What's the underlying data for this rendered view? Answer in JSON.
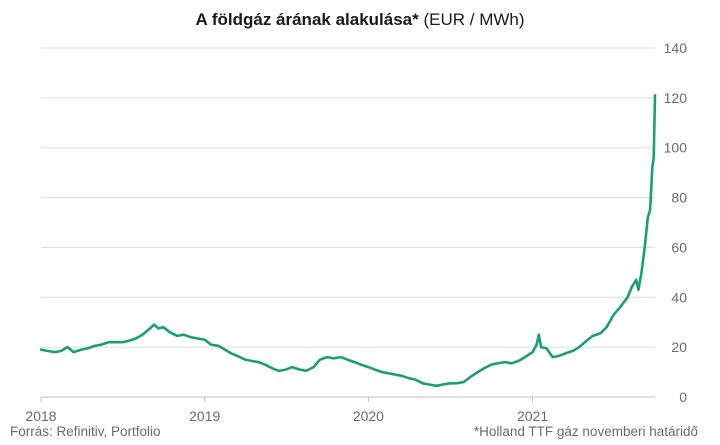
{
  "chart_data": {
    "type": "line",
    "title_bold": "A földgáz árának alakulása*",
    "title_unit": "(EUR / MWh)",
    "ylim": [
      0,
      140
    ],
    "yticks": [
      0,
      20,
      40,
      60,
      80,
      100,
      120,
      140
    ],
    "xlim": [
      "2018-01-01",
      "2021-10-01"
    ],
    "xticks": [
      {
        "label": "2018",
        "date": "2018-01-01"
      },
      {
        "label": "2019",
        "date": "2019-01-01"
      },
      {
        "label": "2020",
        "date": "2020-01-01"
      },
      {
        "label": "2021",
        "date": "2021-01-01"
      }
    ],
    "grid": true,
    "line_color": "#1a9e76",
    "series": [
      {
        "points": [
          [
            "2018-01-01",
            19.0
          ],
          [
            "2018-01-15",
            18.5
          ],
          [
            "2018-02-01",
            18.0
          ],
          [
            "2018-02-15",
            18.5
          ],
          [
            "2018-03-01",
            20.0
          ],
          [
            "2018-03-15",
            18.0
          ],
          [
            "2018-04-01",
            19.0
          ],
          [
            "2018-04-15",
            19.5
          ],
          [
            "2018-05-01",
            20.5
          ],
          [
            "2018-05-15",
            21.0
          ],
          [
            "2018-06-01",
            22.0
          ],
          [
            "2018-06-15",
            22.0
          ],
          [
            "2018-07-01",
            22.0
          ],
          [
            "2018-07-15",
            22.5
          ],
          [
            "2018-08-01",
            23.5
          ],
          [
            "2018-08-15",
            25.0
          ],
          [
            "2018-09-01",
            27.5
          ],
          [
            "2018-09-10",
            29.0
          ],
          [
            "2018-09-20",
            27.5
          ],
          [
            "2018-10-01",
            28.0
          ],
          [
            "2018-10-15",
            26.0
          ],
          [
            "2018-11-01",
            24.5
          ],
          [
            "2018-11-15",
            25.0
          ],
          [
            "2018-12-01",
            24.0
          ],
          [
            "2018-12-15",
            23.5
          ],
          [
            "2019-01-01",
            23.0
          ],
          [
            "2019-01-15",
            21.0
          ],
          [
            "2019-02-01",
            20.5
          ],
          [
            "2019-02-15",
            19.0
          ],
          [
            "2019-03-01",
            17.5
          ],
          [
            "2019-03-15",
            16.5
          ],
          [
            "2019-04-01",
            15.0
          ],
          [
            "2019-04-15",
            14.5
          ],
          [
            "2019-05-01",
            14.0
          ],
          [
            "2019-05-15",
            13.0
          ],
          [
            "2019-06-01",
            11.5
          ],
          [
            "2019-06-15",
            10.5
          ],
          [
            "2019-07-01",
            11.0
          ],
          [
            "2019-07-15",
            12.0
          ],
          [
            "2019-08-01",
            11.0
          ],
          [
            "2019-08-15",
            10.5
          ],
          [
            "2019-09-01",
            12.0
          ],
          [
            "2019-09-15",
            15.0
          ],
          [
            "2019-10-01",
            16.0
          ],
          [
            "2019-10-15",
            15.5
          ],
          [
            "2019-11-01",
            16.0
          ],
          [
            "2019-11-15",
            15.0
          ],
          [
            "2019-12-01",
            14.0
          ],
          [
            "2019-12-15",
            13.0
          ],
          [
            "2020-01-01",
            12.0
          ],
          [
            "2020-01-15",
            11.0
          ],
          [
            "2020-02-01",
            10.0
          ],
          [
            "2020-02-15",
            9.5
          ],
          [
            "2020-03-01",
            9.0
          ],
          [
            "2020-03-15",
            8.5
          ],
          [
            "2020-04-01",
            7.5
          ],
          [
            "2020-04-15",
            7.0
          ],
          [
            "2020-05-01",
            5.5
          ],
          [
            "2020-05-15",
            5.0
          ],
          [
            "2020-06-01",
            4.5
          ],
          [
            "2020-06-15",
            5.0
          ],
          [
            "2020-07-01",
            5.5
          ],
          [
            "2020-07-15",
            5.5
          ],
          [
            "2020-08-01",
            6.0
          ],
          [
            "2020-08-15",
            8.0
          ],
          [
            "2020-09-01",
            10.0
          ],
          [
            "2020-09-15",
            11.5
          ],
          [
            "2020-10-01",
            13.0
          ],
          [
            "2020-10-15",
            13.5
          ],
          [
            "2020-11-01",
            14.0
          ],
          [
            "2020-11-15",
            13.5
          ],
          [
            "2020-12-01",
            14.5
          ],
          [
            "2020-12-15",
            16.0
          ],
          [
            "2021-01-01",
            18.0
          ],
          [
            "2021-01-10",
            21.0
          ],
          [
            "2021-01-15",
            25.0
          ],
          [
            "2021-01-20",
            20.0
          ],
          [
            "2021-02-01",
            19.5
          ],
          [
            "2021-02-15",
            16.0
          ],
          [
            "2021-03-01",
            16.5
          ],
          [
            "2021-03-15",
            17.5
          ],
          [
            "2021-04-01",
            18.5
          ],
          [
            "2021-04-15",
            20.0
          ],
          [
            "2021-05-01",
            22.5
          ],
          [
            "2021-05-15",
            24.5
          ],
          [
            "2021-06-01",
            25.5
          ],
          [
            "2021-06-15",
            28.0
          ],
          [
            "2021-07-01",
            33.0
          ],
          [
            "2021-07-15",
            36.0
          ],
          [
            "2021-08-01",
            40.0
          ],
          [
            "2021-08-10",
            44.0
          ],
          [
            "2021-08-20",
            47.0
          ],
          [
            "2021-08-25",
            43.0
          ],
          [
            "2021-09-01",
            50.0
          ],
          [
            "2021-09-08",
            60.0
          ],
          [
            "2021-09-15",
            72.0
          ],
          [
            "2021-09-20",
            75.0
          ],
          [
            "2021-09-25",
            92.0
          ],
          [
            "2021-09-28",
            96.0
          ],
          [
            "2021-10-01",
            121.0
          ]
        ]
      }
    ]
  },
  "footer": {
    "source": "Forrás: Refinitiv, Portfolio",
    "footnote": "*Holland TTF gáz novemberi határidő"
  }
}
